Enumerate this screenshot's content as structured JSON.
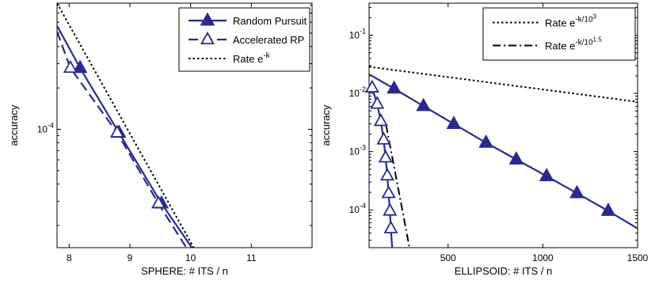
{
  "chart_data": [
    {
      "type": "line",
      "xlabel": "SPHERE: # ITS / n",
      "ylabel": "accuracy",
      "xlim": [
        7.8,
        12
      ],
      "ylim": [
        1.38e-05,
        0.000826
      ],
      "yscale": "log",
      "grid": false,
      "legend_position": "top-right",
      "x_ticks": [
        {
          "value": 8,
          "label": "8"
        },
        {
          "value": 9,
          "label": "9"
        },
        {
          "value": 10,
          "label": "10"
        },
        {
          "value": 11,
          "label": "11"
        }
      ],
      "y_ticks": [
        {
          "value": 0.0001,
          "base": "10",
          "exp": "-4"
        }
      ],
      "series": [
        {
          "name": "Random Pursuit",
          "style": "solid",
          "marker": "filled-triangle",
          "color": "#2a2a8e",
          "x": [
            7.8,
            8.18,
            8.82,
            9.52,
            10.02
          ],
          "y": [
            0.000567,
            0.000279,
            9.44e-05,
            2.89e-05,
            1.38e-05
          ],
          "marker_x": [
            8.18,
            8.82,
            9.52
          ]
        },
        {
          "name": "Accelerated RP",
          "style": "dashed",
          "marker": "open-triangle",
          "color": "#2a2a8e",
          "x": [
            7.8,
            8.02,
            8.79,
            9.47,
            9.93
          ],
          "y": [
            0.000514,
            0.000279,
            9.44e-05,
            2.89e-05,
            1.38e-05
          ],
          "marker_x": [
            8.02,
            8.79,
            9.47
          ]
        },
        {
          "name": "Rate e^{-k}",
          "style": "dotted",
          "marker": "none",
          "color": "#000000",
          "x": [
            7.8,
            10.05
          ],
          "y": [
            0.000826,
            1.38e-05
          ]
        }
      ],
      "legend": [
        {
          "series": 0,
          "text": "Random Pursuit"
        },
        {
          "series": 1,
          "text": "Accelerated RP"
        },
        {
          "series": 2,
          "text_base": "Rate e",
          "text_sup": "-k"
        }
      ]
    },
    {
      "type": "line",
      "xlabel": "ELLIPSOID: # ITS / n",
      "ylabel": "accuracy",
      "xlim": [
        83,
        1500
      ],
      "ylim": [
        2.24e-05,
        0.355
      ],
      "yscale": "log",
      "grid": false,
      "legend_position": "top-right",
      "x_ticks": [
        {
          "value": 500,
          "label": "500"
        },
        {
          "value": 1000,
          "label": "1000"
        },
        {
          "value": 1500,
          "label": "1500"
        }
      ],
      "y_ticks": [
        {
          "value": 0.1,
          "base": "10",
          "exp": "-1"
        },
        {
          "value": 0.01,
          "base": "10",
          "exp": "-2"
        },
        {
          "value": 0.001,
          "base": "10",
          "exp": "-3"
        },
        {
          "value": 0.0001,
          "base": "10",
          "exp": "-4"
        }
      ],
      "series": [
        {
          "name": "Random Pursuit",
          "style": "solid",
          "marker": "filled-triangle",
          "color": "#2a2a8e",
          "x": [
            83,
            215,
            370,
            530,
            700,
            860,
            1020,
            1180,
            1345,
            1500
          ],
          "y": [
            0.0213,
            0.0121,
            0.00605,
            0.00299,
            0.00142,
            0.000733,
            0.000379,
            0.000193,
            9.58e-05,
            4.77e-05
          ],
          "marker_x": [
            215,
            370,
            530,
            700,
            860,
            1020,
            1180,
            1345
          ]
        },
        {
          "name": "Accelerated RP",
          "style": "solid",
          "marker": "open-triangle",
          "color": "#2a2a8e",
          "x": [
            99,
            126,
            145,
            160,
            170,
            179,
            186,
            193,
            198,
            205
          ],
          "y": [
            0.0125,
            0.00657,
            0.00332,
            0.0016,
            0.000784,
            0.000385,
            0.000192,
            9.58e-05,
            4.77e-05,
            2.24e-05
          ],
          "marker_x": [
            99,
            126,
            145,
            160,
            170,
            179,
            186,
            193,
            198
          ]
        },
        {
          "name": "Rate e^{-k/10^3}",
          "style": "dotted",
          "marker": "none",
          "color": "#000000",
          "x": [
            83,
            1500
          ],
          "y": [
            0.0287,
            0.00717
          ]
        },
        {
          "name": "Rate e^{-k/10^{1.5}}",
          "style": "dashdot",
          "marker": "none",
          "color": "#000000",
          "x": [
            173,
            296
          ],
          "y": [
            0.00286,
            2.24e-05
          ]
        }
      ],
      "legend": [
        {
          "series": 2,
          "text_base": "Rate e",
          "text_sup": "-k/10",
          "text_sup2": "3"
        },
        {
          "series": 3,
          "text_base": "Rate e",
          "text_sup": "-k/10",
          "text_sup2": "1.5"
        }
      ]
    }
  ]
}
